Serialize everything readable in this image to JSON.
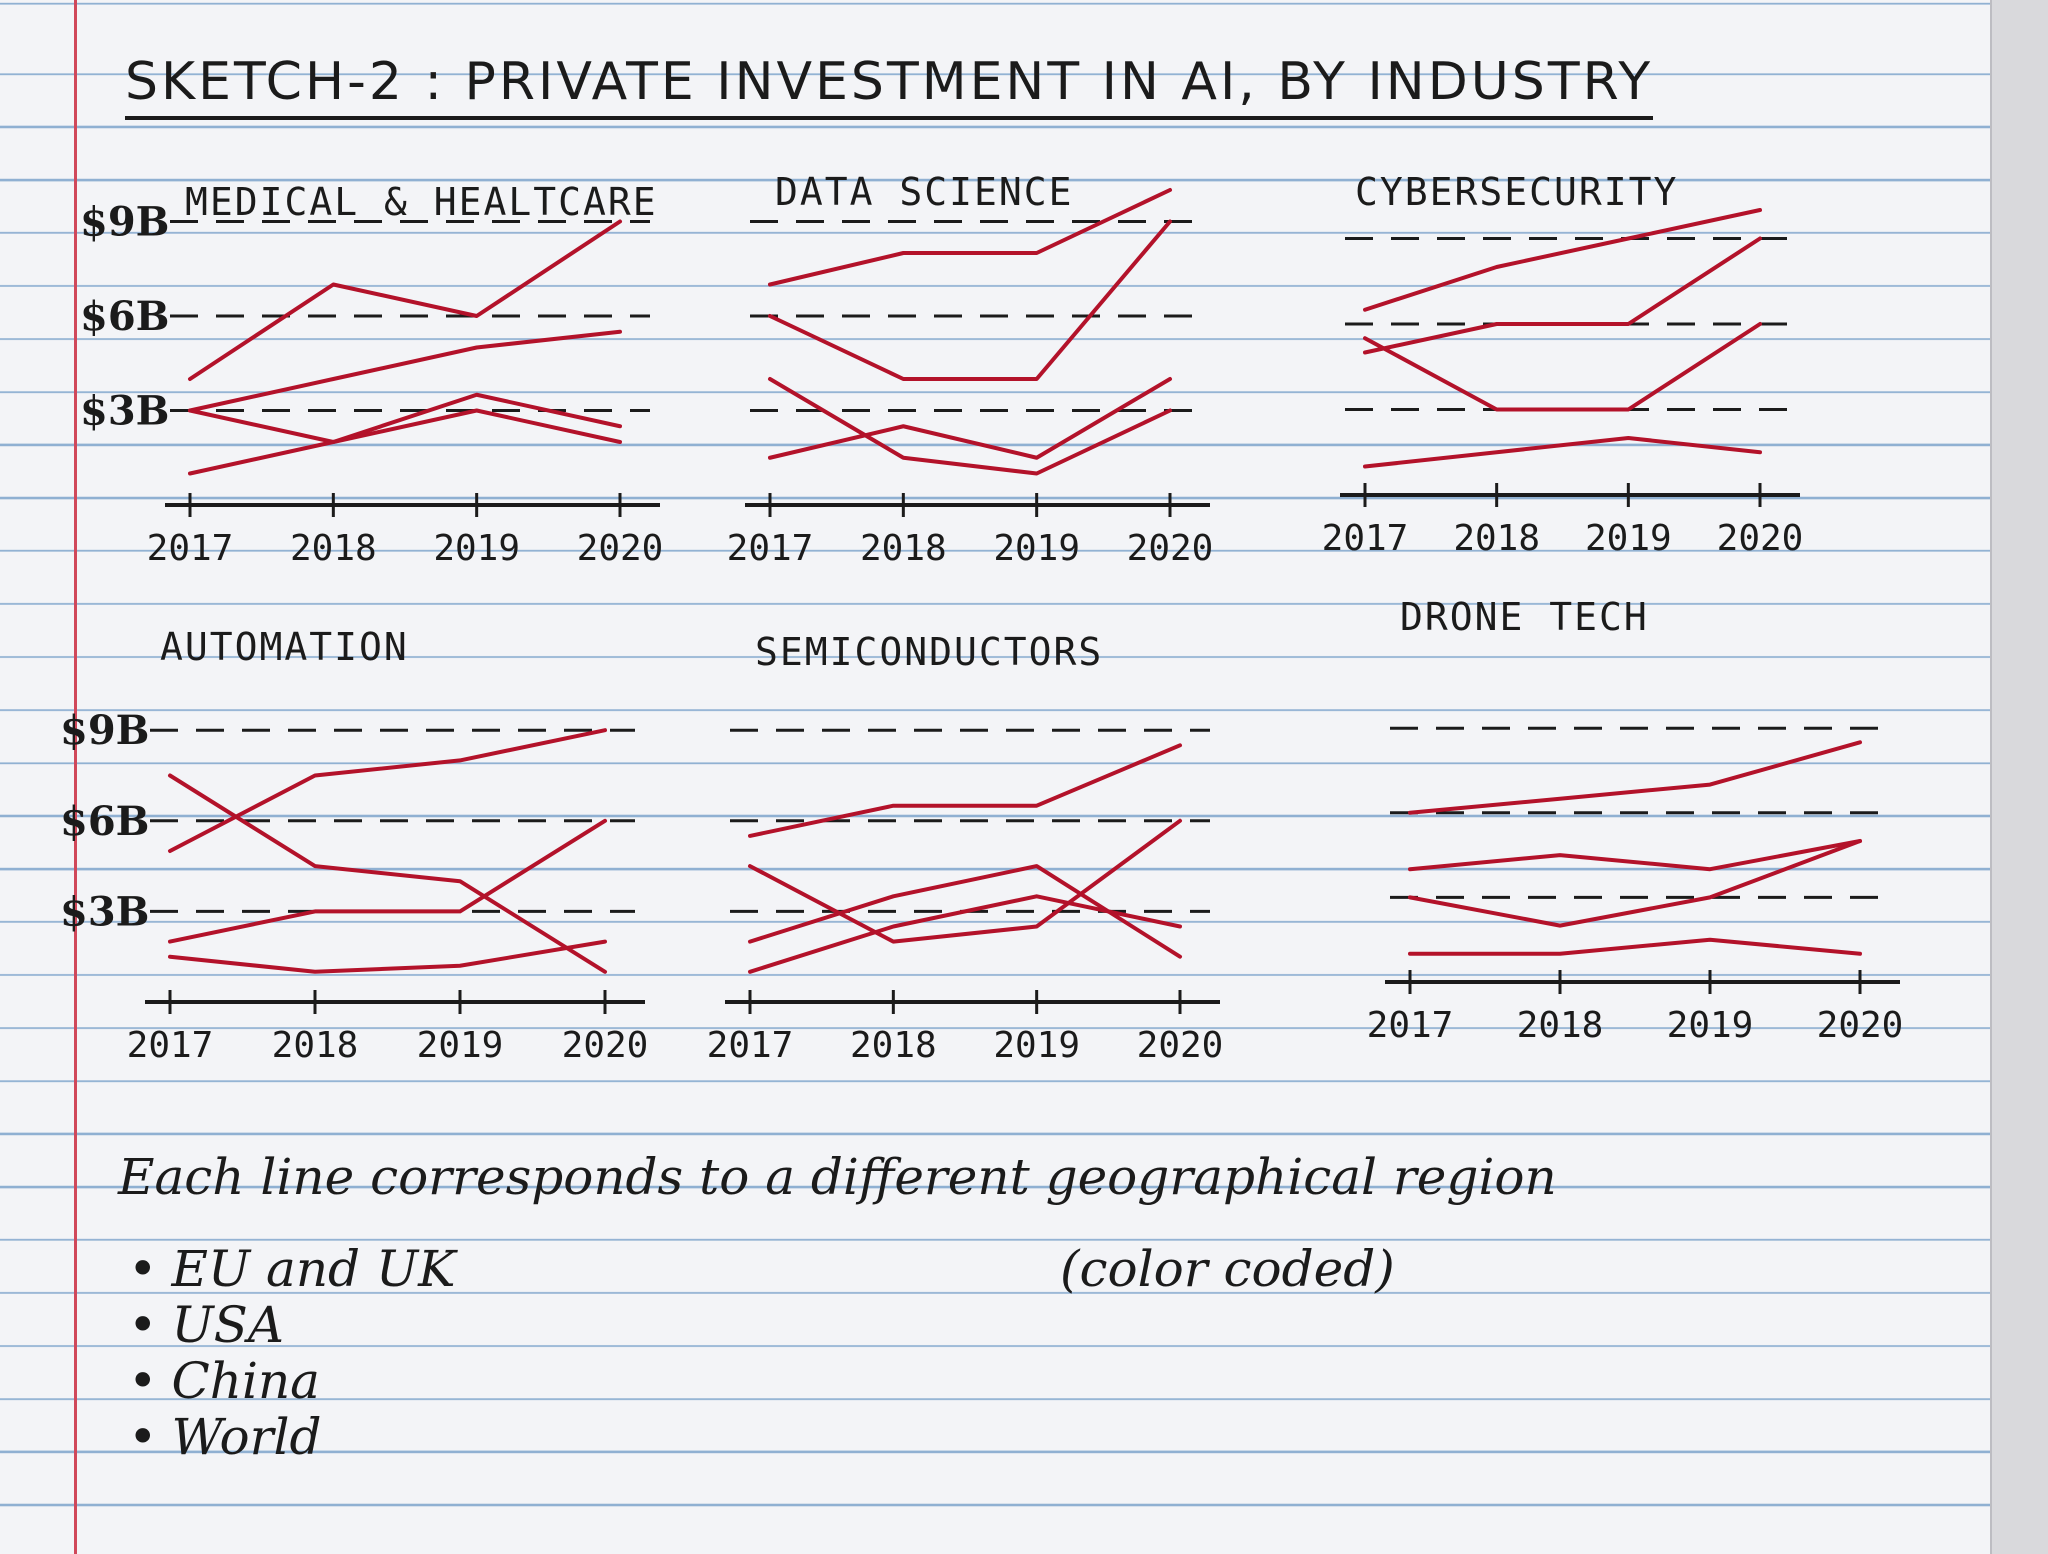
{
  "title": "SKETCH-2 : PRIVATE INVESTMENT IN AI, BY INDUSTRY",
  "footnote": "Each line corresponds to a different geographical region",
  "footnote_sub": "(color coded)",
  "legend_items": [
    "EU and UK",
    "USA",
    "China",
    "World"
  ],
  "line_color": "#b3122a",
  "chart_data": [
    {
      "type": "line",
      "title": "MEDICAL & HEALTCARE",
      "x": [
        2017,
        2018,
        2019,
        2020
      ],
      "y_ticks": [
        {
          "label": "$9B",
          "value": 9
        },
        {
          "label": "$6B",
          "value": 6
        },
        {
          "label": "$3B",
          "value": 3
        }
      ],
      "ylim": [
        0,
        10
      ],
      "grid": "dashed",
      "series": [
        {
          "values": [
            4,
            7,
            6,
            9
          ]
        },
        {
          "values": [
            3,
            4,
            5,
            5.5
          ]
        },
        {
          "values": [
            1,
            2,
            3.5,
            2.5
          ]
        },
        {
          "values": [
            3,
            2,
            3,
            2
          ]
        }
      ]
    },
    {
      "type": "line",
      "title": "DATA SCIENCE",
      "x": [
        2017,
        2018,
        2019,
        2020
      ],
      "y_ticks": [],
      "ylim": [
        0,
        10
      ],
      "grid": "dashed",
      "series": [
        {
          "values": [
            7,
            8,
            8,
            10
          ]
        },
        {
          "values": [
            6,
            4,
            4,
            9
          ]
        },
        {
          "values": [
            4,
            1.5,
            1,
            3
          ]
        },
        {
          "values": [
            1.5,
            2.5,
            1.5,
            4
          ]
        }
      ]
    },
    {
      "type": "line",
      "title": "CYBERSECURITY",
      "x": [
        2017,
        2018,
        2019,
        2020
      ],
      "y_ticks": [],
      "ylim": [
        0,
        10
      ],
      "grid": "dashed",
      "series": [
        {
          "values": [
            6.5,
            8,
            9,
            10
          ]
        },
        {
          "values": [
            5,
            6,
            6,
            9
          ]
        },
        {
          "values": [
            5.5,
            3,
            3,
            6
          ]
        },
        {
          "values": [
            1,
            1.5,
            2,
            1.5
          ]
        }
      ]
    },
    {
      "type": "line",
      "title": "AUTOMATION",
      "x": [
        2017,
        2018,
        2019,
        2020
      ],
      "y_ticks": [
        {
          "label": "$9B",
          "value": 9
        },
        {
          "label": "$6B",
          "value": 6
        },
        {
          "label": "$3B",
          "value": 3
        }
      ],
      "ylim": [
        0,
        10
      ],
      "grid": "dashed",
      "series": [
        {
          "values": [
            5,
            7.5,
            8,
            9
          ]
        },
        {
          "values": [
            7.5,
            4.5,
            4,
            1
          ]
        },
        {
          "values": [
            2,
            3,
            3,
            6
          ]
        },
        {
          "values": [
            1.5,
            1,
            1.2,
            2
          ]
        }
      ]
    },
    {
      "type": "line",
      "title": "SEMICONDUCTORS",
      "x": [
        2017,
        2018,
        2019,
        2020
      ],
      "y_ticks": [],
      "ylim": [
        0,
        10
      ],
      "grid": "dashed",
      "series": [
        {
          "values": [
            5.5,
            6.5,
            6.5,
            8.5
          ]
        },
        {
          "values": [
            4.5,
            2,
            2.5,
            6
          ]
        },
        {
          "values": [
            2,
            3.5,
            4.5,
            1.5
          ]
        },
        {
          "values": [
            1,
            2.5,
            3.5,
            2.5
          ]
        }
      ]
    },
    {
      "type": "line",
      "title": "DRONE TECH",
      "x": [
        2017,
        2018,
        2019,
        2020
      ],
      "y_ticks": [],
      "ylim": [
        0,
        10
      ],
      "grid": "dashed",
      "series": [
        {
          "values": [
            6,
            6.5,
            7,
            8.5
          ]
        },
        {
          "values": [
            4,
            4.5,
            4,
            5
          ]
        },
        {
          "values": [
            3,
            2,
            3,
            5
          ]
        },
        {
          "values": [
            1,
            1,
            1.5,
            1
          ]
        }
      ]
    }
  ]
}
